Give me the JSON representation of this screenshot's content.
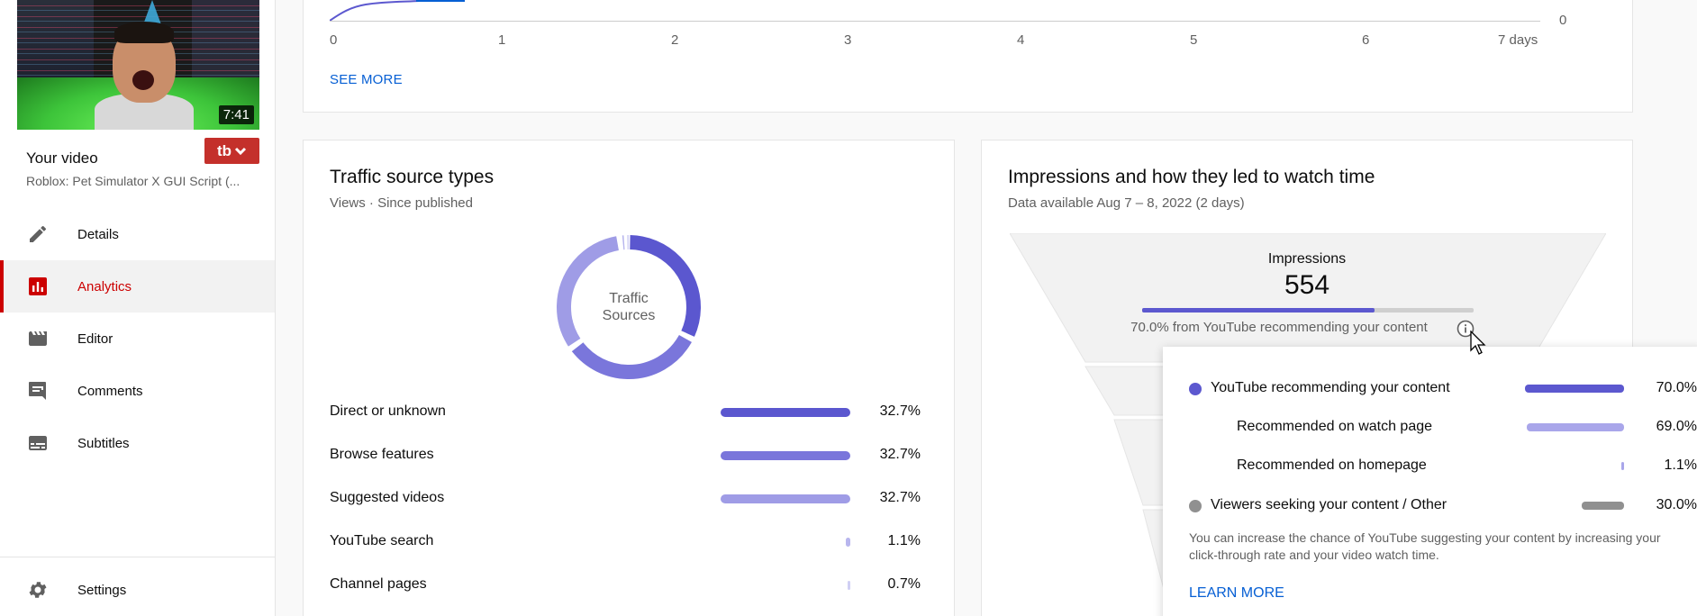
{
  "sidebar": {
    "thumbnail_duration": "7:41",
    "your_video_label": "Your video",
    "video_title": "Roblox: Pet Simulator X GUI Script (...",
    "tb_button_label": "tb",
    "nav": [
      {
        "label": "Details",
        "icon": "pencil-icon"
      },
      {
        "label": "Analytics",
        "icon": "analytics-icon",
        "active": true
      },
      {
        "label": "Editor",
        "icon": "clapperboard-icon"
      },
      {
        "label": "Comments",
        "icon": "comment-icon"
      },
      {
        "label": "Subtitles",
        "icon": "subtitles-icon"
      }
    ],
    "settings_label": "Settings"
  },
  "top_chart": {
    "ticks": [
      "0",
      "1",
      "2",
      "3",
      "4",
      "5",
      "6",
      "7 days"
    ],
    "right_axis_value": "0",
    "see_more": "SEE MORE"
  },
  "traffic": {
    "title": "Traffic source types",
    "subtitle": "Views · Since published",
    "donut_label_line1": "Traffic",
    "donut_label_line2": "Sources",
    "rows": [
      {
        "label": "Direct or unknown",
        "value": "32.7%",
        "fraction": 0.327,
        "color": "#5b57cf"
      },
      {
        "label": "Browse features",
        "value": "32.7%",
        "fraction": 0.327,
        "color": "#7a76db"
      },
      {
        "label": "Suggested videos",
        "value": "32.7%",
        "fraction": 0.327,
        "color": "#9f9ce6"
      },
      {
        "label": "YouTube search",
        "value": "1.1%",
        "fraction": 0.011,
        "color": "#b8b6ee"
      },
      {
        "label": "Channel pages",
        "value": "0.7%",
        "fraction": 0.007,
        "color": "#d0cff4"
      }
    ]
  },
  "impressions": {
    "title": "Impressions and how they led to watch time",
    "subtitle": "Data available Aug 7 – 8, 2022 (2 days)",
    "label": "Impressions",
    "value": "554",
    "recommended_fraction": 0.7,
    "note": "70.0% from YouTube recommending your content"
  },
  "popup": {
    "rows": [
      {
        "label": "YouTube recommending your content",
        "value": "70.0%",
        "fraction": 0.7,
        "color": "#5c58cf",
        "dot": true,
        "indent": false
      },
      {
        "label": "Recommended on watch page",
        "value": "69.0%",
        "fraction": 0.69,
        "color": "#a9a6ea",
        "dot": false,
        "indent": true
      },
      {
        "label": "Recommended on homepage",
        "value": "1.1%",
        "fraction": 0.011,
        "color": "#a9a6ea",
        "dot": false,
        "indent": true
      },
      {
        "label": "Viewers seeking your content / Other",
        "value": "30.0%",
        "fraction": 0.3,
        "color": "#909090",
        "dot": true,
        "indent": false
      }
    ],
    "text": "You can increase the chance of YouTube suggesting your content by increasing your click-through rate and your video watch time.",
    "learn_more": "LEARN MORE"
  }
}
